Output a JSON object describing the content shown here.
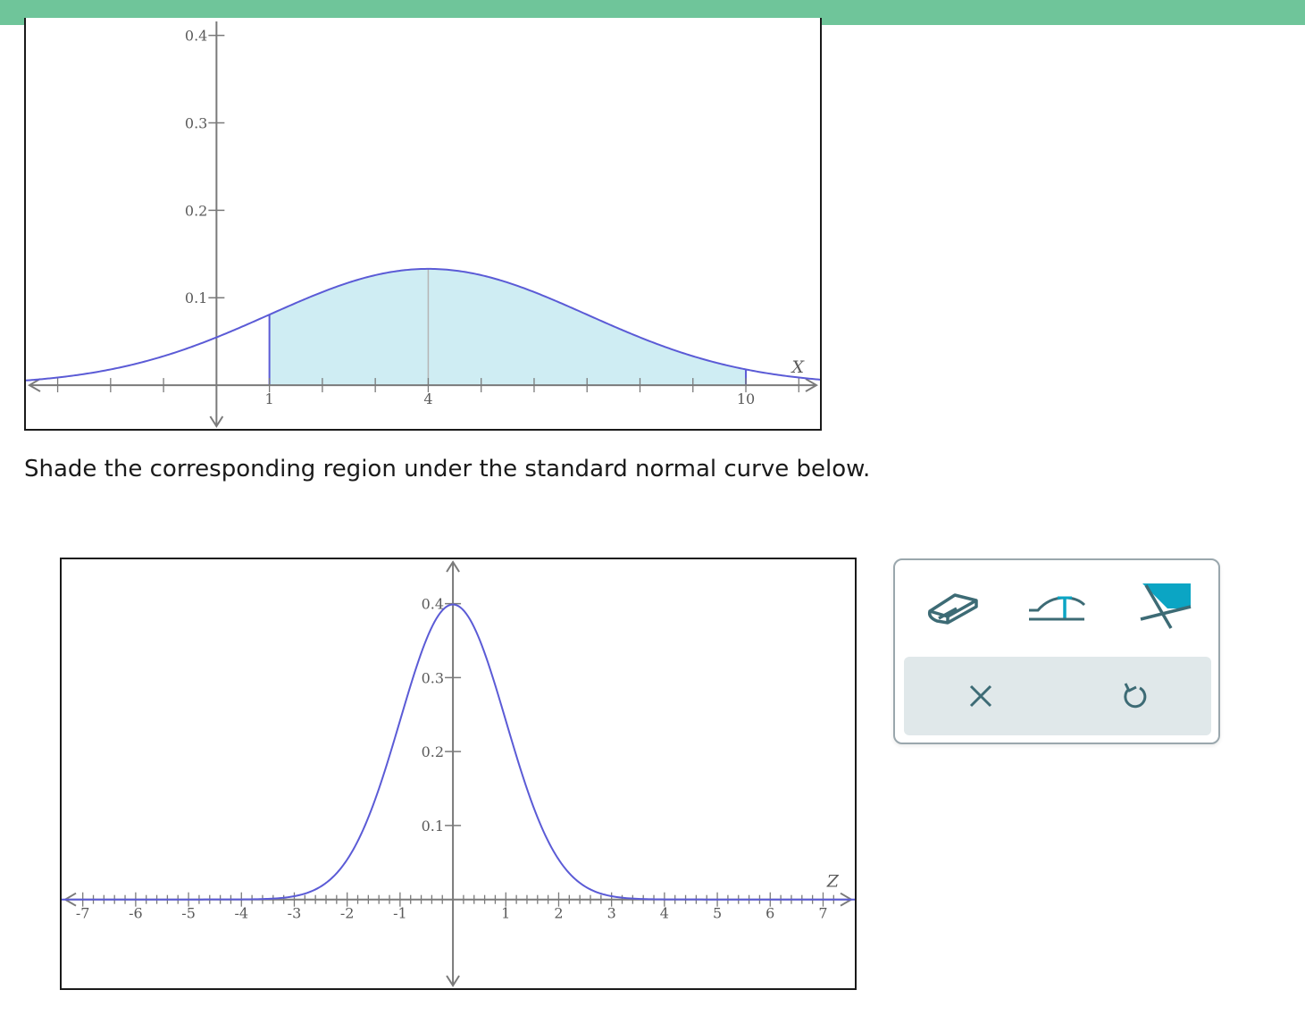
{
  "prompt": "Shade the corresponding region under the standard normal curve below.",
  "colors": {
    "header": "#6fc59a",
    "curve": "#5b5bd6",
    "shade": "#cfedf3",
    "axis": "#7a7a7a",
    "icon": "#3d6b75",
    "icon_accent": "#0ba5c4"
  },
  "chart_data": [
    {
      "type": "area",
      "distribution": "normal",
      "mean": 4,
      "sd": 3,
      "xlabel": "X",
      "x_tick_labels": [
        "1",
        "4",
        "10"
      ],
      "y_tick_labels": [
        "0.1",
        "0.2",
        "0.3",
        "0.4"
      ],
      "y_ticks": [
        0.1,
        0.2,
        0.3,
        0.4
      ],
      "xlim": [
        -3.6,
        11.4
      ],
      "ylim": [
        -0.05,
        0.42
      ],
      "shaded_region": [
        1,
        10
      ],
      "x_ticks": [
        -3,
        -2,
        -1,
        1,
        2,
        3,
        4,
        5,
        6,
        7,
        8,
        9,
        10,
        11
      ]
    },
    {
      "type": "line",
      "distribution": "normal",
      "mean": 0,
      "sd": 1,
      "xlabel": "Z",
      "x_tick_labels": [
        "-7",
        "-6",
        "-5",
        "-4",
        "-3",
        "-2",
        "-1",
        "1",
        "2",
        "3",
        "4",
        "5",
        "6",
        "7"
      ],
      "x_ticks": [
        -7,
        -6,
        -5,
        -4,
        -3,
        -2,
        -1,
        1,
        2,
        3,
        4,
        5,
        6,
        7
      ],
      "y_tick_labels": [
        "0.1",
        "0.2",
        "0.3",
        "0.4"
      ],
      "y_ticks": [
        0.1,
        0.2,
        0.3,
        0.4
      ],
      "xlim": [
        -7.4,
        7.6
      ],
      "ylim": [
        -0.12,
        0.46
      ],
      "shaded_region": null
    }
  ],
  "tools": {
    "eraser": "eraser-icon",
    "curve": "curve-boundary-icon",
    "shade": "shade-region-icon",
    "clear": "close-icon",
    "undo": "undo-icon"
  }
}
